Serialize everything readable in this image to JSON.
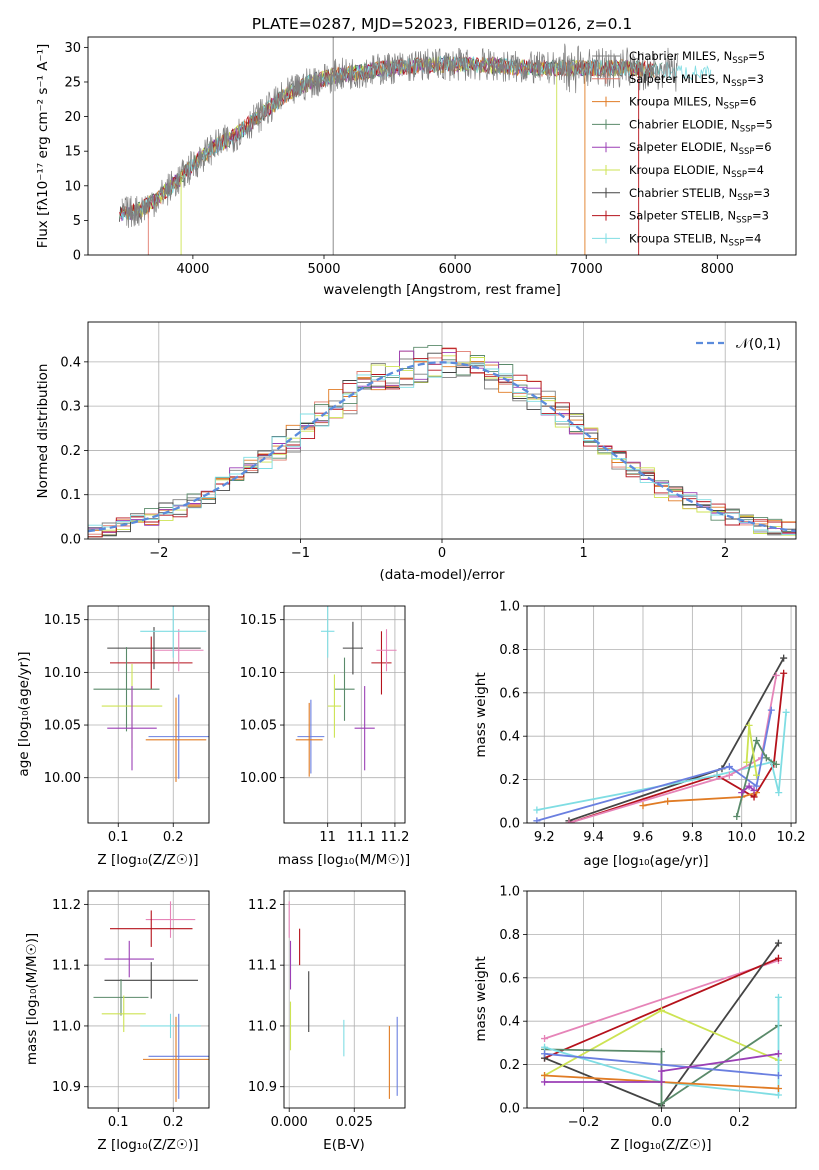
{
  "figure_title": "PLATE=0287, MJD=52023, FIBERID=0126, z=0.1",
  "models": [
    {
      "name": "Chabrier MILES",
      "nssp": "5",
      "color": "#7f7f7f"
    },
    {
      "name": "Salpeter MILES",
      "nssp": "3",
      "color": "#e07b6e"
    },
    {
      "name": "Kroupa MILES",
      "nssp": "6",
      "color": "#e07b24"
    },
    {
      "name": "Chabrier ELODIE",
      "nssp": "5",
      "color": "#5a8a6a"
    },
    {
      "name": "Salpeter ELODIE",
      "nssp": "6",
      "color": "#9b3fb6"
    },
    {
      "name": "Kroupa ELODIE",
      "nssp": "4",
      "color": "#cde353"
    },
    {
      "name": "Chabrier STELIB",
      "nssp": "3",
      "color": "#444444"
    },
    {
      "name": "Salpeter STELIB",
      "nssp": "3",
      "color": "#b5121b"
    },
    {
      "name": "Kroupa STELIB",
      "nssp": "4",
      "color": "#7fdde3"
    }
  ],
  "extra_colors": {
    "pink": "#e684b8",
    "blue": "#6a7fe0",
    "orange": "#e07b24"
  },
  "chart_data": [
    {
      "id": "spectrum",
      "type": "line",
      "title": "PLATE=0287, MJD=52023, FIBERID=0126, z=0.1",
      "xlabel": "wavelength [Angstrom, rest frame]",
      "ylabel": "Flux [fλ10⁻¹⁷ erg cm⁻² s⁻¹ A⁻¹]",
      "xlim": [
        3200,
        8600
      ],
      "ylim": [
        0,
        31.5
      ],
      "xticks": [
        4000,
        5000,
        6000,
        7000,
        8000
      ],
      "yticks": [
        0,
        5,
        10,
        15,
        20,
        25,
        30
      ],
      "legend": "top-right",
      "grid": false,
      "continuum": [
        [
          3450,
          6
        ],
        [
          3600,
          6.5
        ],
        [
          3750,
          8.5
        ],
        [
          3900,
          11
        ],
        [
          4000,
          13
        ],
        [
          4150,
          15.5
        ],
        [
          4300,
          17
        ],
        [
          4500,
          20
        ],
        [
          4700,
          23
        ],
        [
          4900,
          25
        ],
        [
          5100,
          26
        ],
        [
          5300,
          26.5
        ],
        [
          5500,
          27
        ],
        [
          5800,
          27.5
        ],
        [
          6200,
          27.5
        ],
        [
          6600,
          27
        ],
        [
          7000,
          27
        ],
        [
          7400,
          27
        ],
        [
          7700,
          26.5
        ],
        [
          8000,
          26
        ]
      ]
    },
    {
      "id": "residuals",
      "type": "line",
      "xlabel": "(data-model)/error",
      "ylabel": "Normed distribution",
      "xlim": [
        -2.5,
        2.5
      ],
      "ylim": [
        0,
        0.49
      ],
      "xticks": [
        -2,
        -1,
        0,
        1,
        2
      ],
      "yticks": [
        0.0,
        0.1,
        0.2,
        0.3,
        0.4
      ],
      "grid": true,
      "legend": "top-right",
      "reference_label": "𝒩(0,1)",
      "reference_color": "#5b8bdc"
    },
    {
      "id": "age_vs_Z",
      "type": "scatter",
      "xlabel": "Z [log₁₀(Z/Z☉)]",
      "ylabel": "age  [log₁₀(age/yr)]",
      "xlim": [
        0.045,
        0.265
      ],
      "ylim": [
        9.957,
        10.163
      ],
      "xticks": [
        0.1,
        0.2
      ],
      "yticks": [
        10.0,
        10.05,
        10.1,
        10.15
      ],
      "grid": true,
      "points": [
        {
          "c": "#444444",
          "x": 0.165,
          "xe": 0.085,
          "y": 10.123,
          "ye": 0.02
        },
        {
          "c": "#b5121b",
          "x": 0.16,
          "xe": 0.075,
          "y": 10.109,
          "ye": 0.025
        },
        {
          "c": "#e684b8",
          "x": 0.21,
          "xe": 0.045,
          "y": 10.121,
          "ye": 0.02
        },
        {
          "c": "#7fdde3",
          "x": 0.2,
          "xe": 0.06,
          "y": 10.139,
          "ye": 0.025
        },
        {
          "c": "#5a8a6a",
          "x": 0.115,
          "xe": 0.06,
          "y": 10.084,
          "ye": 0.04
        },
        {
          "c": "#cde353",
          "x": 0.125,
          "xe": 0.055,
          "y": 10.068,
          "ye": 0.04
        },
        {
          "c": "#9b3fb6",
          "x": 0.125,
          "xe": 0.045,
          "y": 10.047,
          "ye": 0.04
        },
        {
          "c": "#6a7fe0",
          "x": 0.21,
          "xe": 0.055,
          "y": 10.039,
          "ye": 0.04
        },
        {
          "c": "#e07b24",
          "x": 0.205,
          "xe": 0.055,
          "y": 10.036,
          "ye": 0.04
        }
      ]
    },
    {
      "id": "age_vs_mass",
      "type": "scatter",
      "xlabel": "mass [log₁₀(M/M☉)]",
      "ylabel": "",
      "xlim": [
        10.87,
        11.23
      ],
      "ylim": [
        9.957,
        10.163
      ],
      "xticks": [
        11.0,
        11.1,
        11.2
      ],
      "yticks": [
        10.0,
        10.05,
        10.1,
        10.15
      ],
      "grid": true,
      "points": [
        {
          "c": "#444444",
          "x": 11.075,
          "xe": 0.03,
          "y": 10.123,
          "ye": 0.025
        },
        {
          "c": "#b5121b",
          "x": 11.16,
          "xe": 0.03,
          "y": 10.109,
          "ye": 0.03
        },
        {
          "c": "#e684b8",
          "x": 11.175,
          "xe": 0.03,
          "y": 10.121,
          "ye": 0.02
        },
        {
          "c": "#7fdde3",
          "x": 11.0,
          "xe": 0.02,
          "y": 10.139,
          "ye": 0.025
        },
        {
          "c": "#5a8a6a",
          "x": 11.05,
          "xe": 0.03,
          "y": 10.084,
          "ye": 0.03
        },
        {
          "c": "#cde353",
          "x": 11.02,
          "xe": 0.02,
          "y": 10.068,
          "ye": 0.03
        },
        {
          "c": "#9b3fb6",
          "x": 11.11,
          "xe": 0.03,
          "y": 10.047,
          "ye": 0.04
        },
        {
          "c": "#6a7fe0",
          "x": 10.95,
          "xe": 0.04,
          "y": 10.039,
          "ye": 0.035
        },
        {
          "c": "#e07b24",
          "x": 10.945,
          "xe": 0.04,
          "y": 10.036,
          "ye": 0.035
        }
      ]
    },
    {
      "id": "mass_weight_vs_age",
      "type": "line",
      "xlabel": "age  [log₁₀(age/yr)]",
      "ylabel": "mass weight",
      "xlim": [
        9.13,
        10.22
      ],
      "ylim": [
        0,
        1.0
      ],
      "xticks": [
        9.2,
        9.4,
        9.6,
        9.8,
        10.0,
        10.2
      ],
      "yticks": [
        0.0,
        0.2,
        0.4,
        0.6,
        0.8,
        1.0
      ],
      "grid": true,
      "series": [
        {
          "c": "#444444",
          "pts": [
            [
              9.3,
              0.01
            ],
            [
              9.92,
              0.25
            ],
            [
              10.17,
              0.76
            ]
          ]
        },
        {
          "c": "#b5121b",
          "pts": [
            [
              9.3,
              0.0
            ],
            [
              9.9,
              0.22
            ],
            [
              10.05,
              0.12
            ],
            [
              10.13,
              0.27
            ],
            [
              10.17,
              0.69
            ]
          ]
        },
        {
          "c": "#7fdde3",
          "pts": [
            [
              9.17,
              0.06
            ],
            [
              9.9,
              0.22
            ],
            [
              10.12,
              0.28
            ],
            [
              10.15,
              0.14
            ],
            [
              10.18,
              0.51
            ]
          ]
        },
        {
          "c": "#e684b8",
          "pts": [
            [
              9.3,
              0.0
            ],
            [
              9.95,
              0.22
            ],
            [
              10.08,
              0.3
            ],
            [
              10.14,
              0.68
            ]
          ]
        },
        {
          "c": "#6a7fe0",
          "pts": [
            [
              9.17,
              0.01
            ],
            [
              9.95,
              0.26
            ],
            [
              10.06,
              0.17
            ],
            [
              10.12,
              0.52
            ]
          ]
        },
        {
          "c": "#e07b24",
          "pts": [
            [
              9.6,
              0.08
            ],
            [
              9.7,
              0.1
            ],
            [
              10.0,
              0.12
            ],
            [
              10.06,
              0.14
            ]
          ]
        },
        {
          "c": "#5a8a6a",
          "pts": [
            [
              9.98,
              0.03
            ],
            [
              10.06,
              0.38
            ],
            [
              10.1,
              0.3
            ],
            [
              10.14,
              0.27
            ]
          ]
        },
        {
          "c": "#cde353",
          "pts": [
            [
              10.02,
              0.28
            ],
            [
              10.03,
              0.45
            ],
            [
              10.06,
              0.22
            ]
          ]
        },
        {
          "c": "#9b3fb6",
          "pts": [
            [
              10.0,
              0.14
            ],
            [
              10.03,
              0.17
            ],
            [
              10.05,
              0.15
            ]
          ]
        }
      ]
    },
    {
      "id": "mass_vs_Z",
      "type": "scatter",
      "xlabel": "Z [log₁₀(Z/Z☉)]",
      "ylabel": "mass [log₁₀(M/M☉)]",
      "xlim": [
        0.045,
        0.265
      ],
      "ylim": [
        10.865,
        11.222
      ],
      "xticks": [
        0.1,
        0.2
      ],
      "yticks": [
        10.9,
        11.0,
        11.1,
        11.2
      ],
      "grid": true,
      "points": [
        {
          "c": "#e684b8",
          "x": 0.195,
          "xe": 0.045,
          "y": 11.175,
          "ye": 0.03
        },
        {
          "c": "#b5121b",
          "x": 0.16,
          "xe": 0.075,
          "y": 11.16,
          "ye": 0.03
        },
        {
          "c": "#9b3fb6",
          "x": 0.12,
          "xe": 0.045,
          "y": 11.11,
          "ye": 0.03
        },
        {
          "c": "#444444",
          "x": 0.16,
          "xe": 0.085,
          "y": 11.075,
          "ye": 0.03
        },
        {
          "c": "#5a8a6a",
          "x": 0.105,
          "xe": 0.05,
          "y": 11.047,
          "ye": 0.03
        },
        {
          "c": "#cde353",
          "x": 0.11,
          "xe": 0.04,
          "y": 11.02,
          "ye": 0.03
        },
        {
          "c": "#7fdde3",
          "x": 0.195,
          "xe": 0.055,
          "y": 11.0,
          "ye": 0.02
        },
        {
          "c": "#6a7fe0",
          "x": 0.21,
          "xe": 0.055,
          "y": 10.95,
          "ye": 0.07
        },
        {
          "c": "#e07b24",
          "x": 0.205,
          "xe": 0.06,
          "y": 10.945,
          "ye": 0.07
        }
      ]
    },
    {
      "id": "mass_vs_ebv",
      "type": "scatter",
      "xlabel": "E(B-V)",
      "ylabel": "",
      "xlim": [
        -0.002,
        0.0445
      ],
      "ylim": [
        10.865,
        11.222
      ],
      "xticks": [
        0.0,
        0.025
      ],
      "yticks": [
        10.9,
        11.0,
        11.1,
        11.2
      ],
      "grid": true,
      "points": [
        {
          "c": "#e684b8",
          "x": 0.0,
          "xe": 0,
          "y": 11.175,
          "ye": 0.03
        },
        {
          "c": "#b5121b",
          "x": 0.004,
          "xe": 0,
          "y": 11.13,
          "ye": 0.03
        },
        {
          "c": "#9b3fb6",
          "x": 0.0005,
          "xe": 0,
          "y": 11.1,
          "ye": 0.04
        },
        {
          "c": "#444444",
          "x": 0.0075,
          "xe": 0,
          "y": 11.04,
          "ye": 0.05
        },
        {
          "c": "#cde353",
          "x": 0.0005,
          "xe": 0,
          "y": 11.0,
          "ye": 0.04
        },
        {
          "c": "#7fdde3",
          "x": 0.021,
          "xe": 0,
          "y": 10.98,
          "ye": 0.03
        },
        {
          "c": "#e07b24",
          "x": 0.0385,
          "xe": 0,
          "y": 10.94,
          "ye": 0.06
        },
        {
          "c": "#6a7fe0",
          "x": 0.0415,
          "xe": 0,
          "y": 10.95,
          "ye": 0.065
        }
      ]
    },
    {
      "id": "mass_weight_vs_Z",
      "type": "line",
      "xlabel": "Z [log₁₀(Z/Z☉)]",
      "ylabel": "mass weight",
      "xlim": [
        -0.345,
        0.345
      ],
      "ylim": [
        0,
        1.0
      ],
      "xticks": [
        -0.2,
        0.0,
        0.2
      ],
      "yticks": [
        0.0,
        0.2,
        0.4,
        0.6,
        0.8,
        1.0
      ],
      "grid": true,
      "series": [
        {
          "c": "#e684b8",
          "pts": [
            [
              -0.3,
              0.32
            ],
            [
              0.3,
              0.68
            ]
          ]
        },
        {
          "c": "#b5121b",
          "pts": [
            [
              -0.3,
              0.23
            ],
            [
              0.3,
              0.69
            ]
          ]
        },
        {
          "c": "#444444",
          "pts": [
            [
              -0.3,
              0.23
            ],
            [
              0.0,
              0.01
            ],
            [
              0.3,
              0.76
            ]
          ]
        },
        {
          "c": "#cde353",
          "pts": [
            [
              -0.3,
              0.15
            ],
            [
              0.0,
              0.45
            ],
            [
              0.3,
              0.22
            ]
          ]
        },
        {
          "c": "#5a8a6a",
          "pts": [
            [
              -0.3,
              0.27
            ],
            [
              0.0,
              0.26
            ],
            [
              0.0,
              0.02
            ],
            [
              0.3,
              0.38
            ]
          ]
        },
        {
          "c": "#7fdde3",
          "pts": [
            [
              -0.3,
              0.28
            ],
            [
              0.0,
              0.12
            ],
            [
              0.3,
              0.06
            ],
            [
              0.3,
              0.51
            ]
          ]
        },
        {
          "c": "#6a7fe0",
          "pts": [
            [
              -0.3,
              0.25
            ],
            [
              0.3,
              0.15
            ]
          ]
        },
        {
          "c": "#e07b24",
          "pts": [
            [
              -0.3,
              0.15
            ],
            [
              0.0,
              0.12
            ],
            [
              0.3,
              0.09
            ]
          ]
        },
        {
          "c": "#9b3fb6",
          "pts": [
            [
              -0.3,
              0.12
            ],
            [
              0.0,
              0.12
            ],
            [
              0.0,
              0.17
            ],
            [
              0.3,
              0.25
            ]
          ]
        }
      ]
    }
  ]
}
